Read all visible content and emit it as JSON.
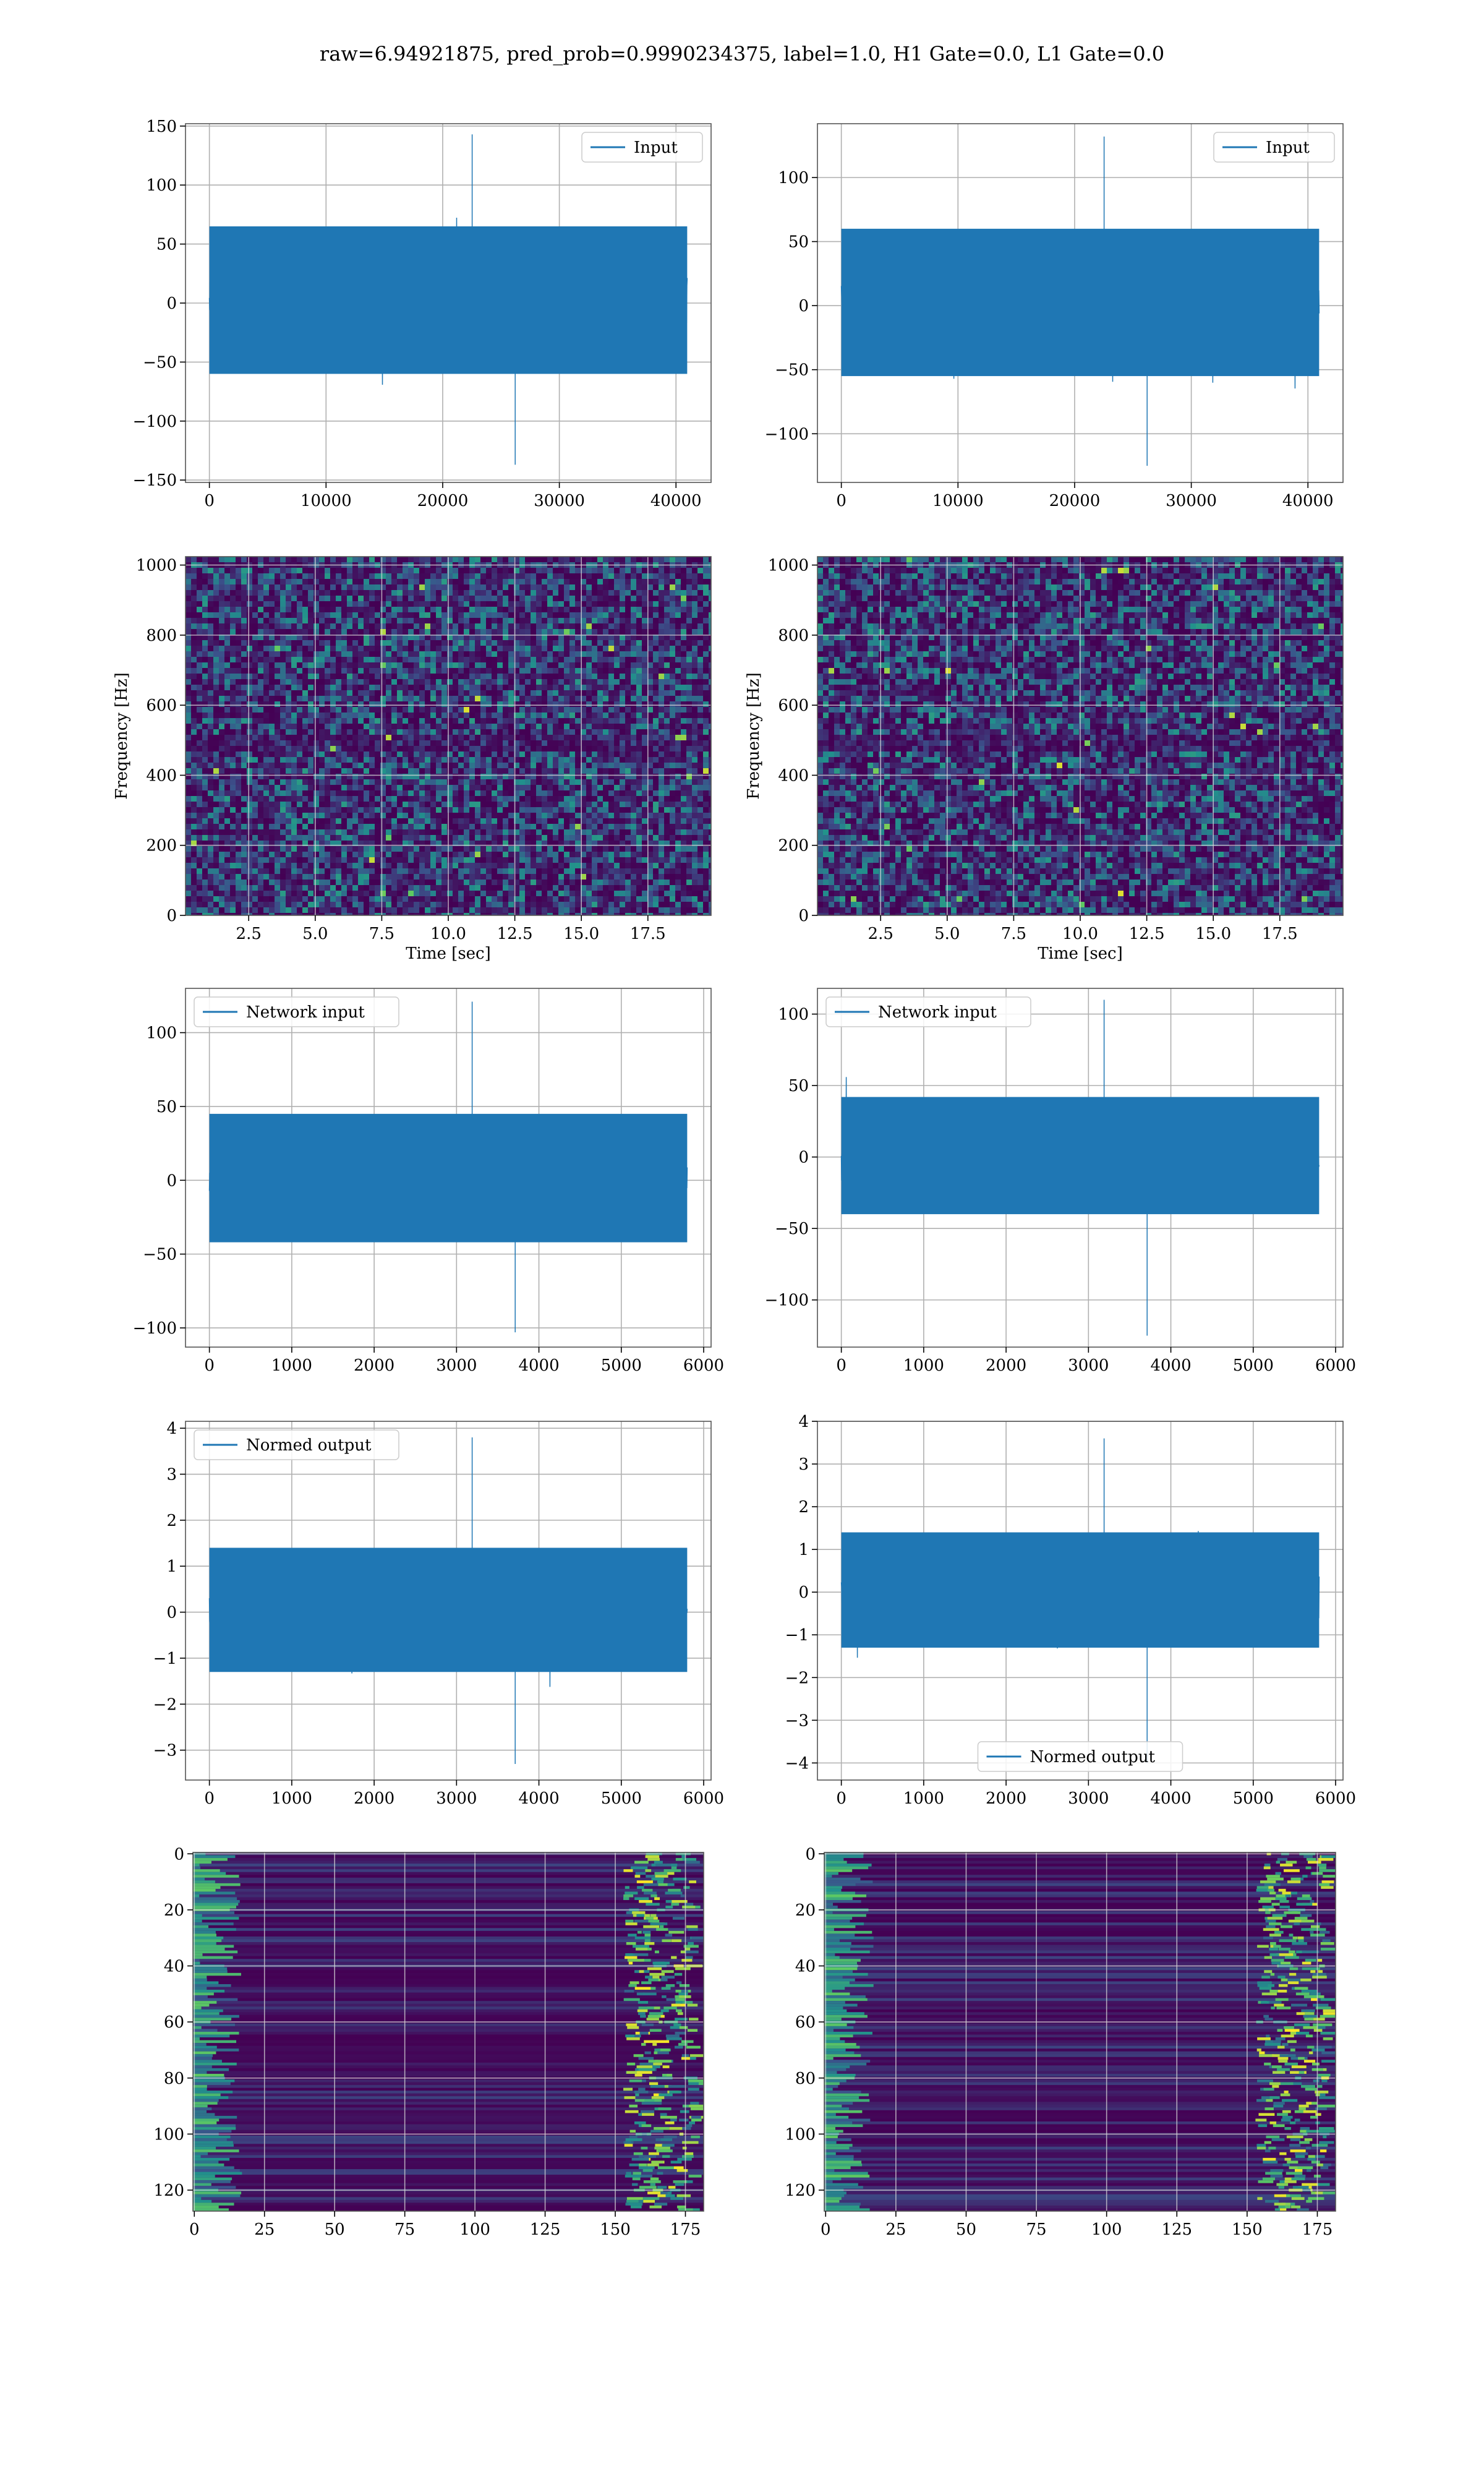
{
  "figure": {
    "suptitle": "raw=6.94921875, pred_prob=0.9990234375, label=1.0, H1 Gate=0.0, L1 Gate=0.0",
    "colors": {
      "line": "#1f77b4",
      "grid": "#b0b0b0",
      "viridis_low": "#440154",
      "viridis_mid": "#21918c",
      "viridis_high": "#fde725"
    }
  },
  "chart_data": [
    {
      "id": "input-h1",
      "type": "line",
      "legend": "Input",
      "legend_loc": "upper right",
      "grid": true,
      "xlim": [
        -2048,
        43008
      ],
      "ylim": [
        -152,
        152
      ],
      "xticks": [
        0,
        10000,
        20000,
        30000,
        40000
      ],
      "xtick_labels": [
        "0",
        "10000",
        "20000",
        "30000",
        "40000"
      ],
      "yticks": [
        -150,
        -100,
        -50,
        0,
        50,
        100,
        150
      ],
      "ytick_labels": [
        "−150",
        "−100",
        "−50",
        "0",
        "50",
        "100",
        "150"
      ],
      "series": [
        {
          "name": "Input",
          "x_range": [
            0,
            40960
          ],
          "y_envelope": [
            -60,
            65
          ],
          "y_spikes": [
            -137,
            143
          ]
        }
      ]
    },
    {
      "id": "input-l1",
      "type": "line",
      "legend": "Input",
      "legend_loc": "upper right",
      "grid": true,
      "xlim": [
        -2048,
        43008
      ],
      "ylim": [
        -138,
        142
      ],
      "xticks": [
        0,
        10000,
        20000,
        30000,
        40000
      ],
      "xtick_labels": [
        "0",
        "10000",
        "20000",
        "30000",
        "40000"
      ],
      "yticks": [
        -100,
        -50,
        0,
        50,
        100
      ],
      "ytick_labels": [
        "−100",
        "−50",
        "0",
        "50",
        "100"
      ],
      "series": [
        {
          "name": "Input",
          "x_range": [
            0,
            40960
          ],
          "y_envelope": [
            -55,
            60
          ],
          "y_spikes": [
            -125,
            132
          ]
        }
      ]
    },
    {
      "id": "spec-h1",
      "type": "heatmap",
      "grid": true,
      "colormap": "viridis",
      "xlabel": "Time [sec]",
      "ylabel": "Frequency [Hz]",
      "xlim": [
        0.125,
        19.875
      ],
      "ylim": [
        0,
        1024
      ],
      "xticks": [
        2.5,
        5,
        7.5,
        10,
        12.5,
        15,
        17.5
      ],
      "xtick_labels": [
        "2.5",
        "5.0",
        "7.5",
        "10.0",
        "12.5",
        "15.0",
        "17.5"
      ],
      "yticks": [
        0,
        200,
        400,
        600,
        800,
        1000
      ],
      "ytick_labels": [
        "0",
        "200",
        "400",
        "600",
        "800",
        "1000"
      ]
    },
    {
      "id": "spec-l1",
      "type": "heatmap",
      "grid": true,
      "colormap": "viridis",
      "xlabel": "Time [sec]",
      "ylabel": "Frequency [Hz]",
      "xlim": [
        0.125,
        19.875
      ],
      "ylim": [
        0,
        1024
      ],
      "xticks": [
        2.5,
        5,
        7.5,
        10,
        12.5,
        15,
        17.5
      ],
      "xtick_labels": [
        "2.5",
        "5.0",
        "7.5",
        "10.0",
        "12.5",
        "15.0",
        "17.5"
      ],
      "yticks": [
        0,
        200,
        400,
        600,
        800,
        1000
      ],
      "ytick_labels": [
        "0",
        "200",
        "400",
        "600",
        "800",
        "1000"
      ]
    },
    {
      "id": "netin-h1",
      "type": "line",
      "legend": "Network input",
      "legend_loc": "upper left",
      "grid": true,
      "xlim": [
        -290,
        6090
      ],
      "ylim": [
        -113,
        130
      ],
      "xticks": [
        0,
        1000,
        2000,
        3000,
        4000,
        5000,
        6000
      ],
      "xtick_labels": [
        "0",
        "1000",
        "2000",
        "3000",
        "4000",
        "5000",
        "6000"
      ],
      "yticks": [
        -100,
        -50,
        0,
        50,
        100
      ],
      "ytick_labels": [
        "−100",
        "−50",
        "0",
        "50",
        "100"
      ],
      "series": [
        {
          "name": "Network input",
          "x_range": [
            0,
            5800
          ],
          "y_envelope": [
            -42,
            45
          ],
          "y_spikes": [
            -103,
            121
          ]
        }
      ]
    },
    {
      "id": "netin-l1",
      "type": "line",
      "legend": "Network input",
      "legend_loc": "upper left",
      "grid": true,
      "xlim": [
        -290,
        6090
      ],
      "ylim": [
        -133,
        118
      ],
      "xticks": [
        0,
        1000,
        2000,
        3000,
        4000,
        5000,
        6000
      ],
      "xtick_labels": [
        "0",
        "1000",
        "2000",
        "3000",
        "4000",
        "5000",
        "6000"
      ],
      "yticks": [
        -100,
        -50,
        0,
        50,
        100
      ],
      "ytick_labels": [
        "−100",
        "−50",
        "0",
        "50",
        "100"
      ],
      "series": [
        {
          "name": "Network input",
          "x_range": [
            0,
            5800
          ],
          "y_envelope": [
            -40,
            42
          ],
          "y_spikes": [
            -125,
            110
          ]
        }
      ]
    },
    {
      "id": "normout-h1",
      "type": "line",
      "legend": "Normed output",
      "legend_loc": "upper left",
      "grid": true,
      "xlim": [
        -290,
        6090
      ],
      "ylim": [
        -3.65,
        4.15
      ],
      "xticks": [
        0,
        1000,
        2000,
        3000,
        4000,
        5000,
        6000
      ],
      "xtick_labels": [
        "0",
        "1000",
        "2000",
        "3000",
        "4000",
        "5000",
        "6000"
      ],
      "yticks": [
        -3,
        -2,
        -1,
        0,
        1,
        2,
        3,
        4
      ],
      "ytick_labels": [
        "−3",
        "−2",
        "−1",
        "0",
        "1",
        "2",
        "3",
        "4"
      ],
      "series": [
        {
          "name": "Normed output",
          "x_range": [
            0,
            5800
          ],
          "y_envelope": [
            -1.3,
            1.4
          ],
          "y_spikes": [
            -3.3,
            3.8
          ]
        }
      ]
    },
    {
      "id": "normout-l1",
      "type": "line",
      "legend": "Normed output",
      "legend_loc": "lower center",
      "grid": true,
      "xlim": [
        -290,
        6090
      ],
      "ylim": [
        -4.4,
        4.0
      ],
      "xticks": [
        0,
        1000,
        2000,
        3000,
        4000,
        5000,
        6000
      ],
      "xtick_labels": [
        "0",
        "1000",
        "2000",
        "3000",
        "4000",
        "5000",
        "6000"
      ],
      "yticks": [
        -4,
        -3,
        -2,
        -1,
        0,
        1,
        2,
        3,
        4
      ],
      "ytick_labels": [
        "−4",
        "−3",
        "−2",
        "−1",
        "0",
        "1",
        "2",
        "3",
        "4"
      ],
      "series": [
        {
          "name": "Normed output",
          "x_range": [
            0,
            5800
          ],
          "y_envelope": [
            -1.3,
            1.4
          ],
          "y_spikes": [
            -4.0,
            3.6
          ]
        }
      ]
    },
    {
      "id": "feat-h1",
      "type": "heatmap",
      "grid": true,
      "colormap": "viridis",
      "y_inverted": true,
      "xlim": [
        -0.5,
        181.5
      ],
      "ylim": [
        127.5,
        -0.5
      ],
      "xticks": [
        0,
        25,
        50,
        75,
        100,
        125,
        150,
        175
      ],
      "xtick_labels": [
        "0",
        "25",
        "50",
        "75",
        "100",
        "125",
        "150",
        "175"
      ],
      "yticks": [
        0,
        20,
        40,
        60,
        80,
        100,
        120
      ],
      "ytick_labels": [
        "0",
        "20",
        "40",
        "60",
        "80",
        "100",
        "120"
      ]
    },
    {
      "id": "feat-l1",
      "type": "heatmap",
      "grid": true,
      "colormap": "viridis",
      "y_inverted": true,
      "xlim": [
        -0.5,
        181.5
      ],
      "ylim": [
        127.5,
        -0.5
      ],
      "xticks": [
        0,
        25,
        50,
        75,
        100,
        125,
        150,
        175
      ],
      "xtick_labels": [
        "0",
        "25",
        "50",
        "75",
        "100",
        "125",
        "150",
        "175"
      ],
      "yticks": [
        0,
        20,
        40,
        60,
        80,
        100,
        120
      ],
      "ytick_labels": [
        "0",
        "20",
        "40",
        "60",
        "80",
        "100",
        "120"
      ]
    }
  ]
}
